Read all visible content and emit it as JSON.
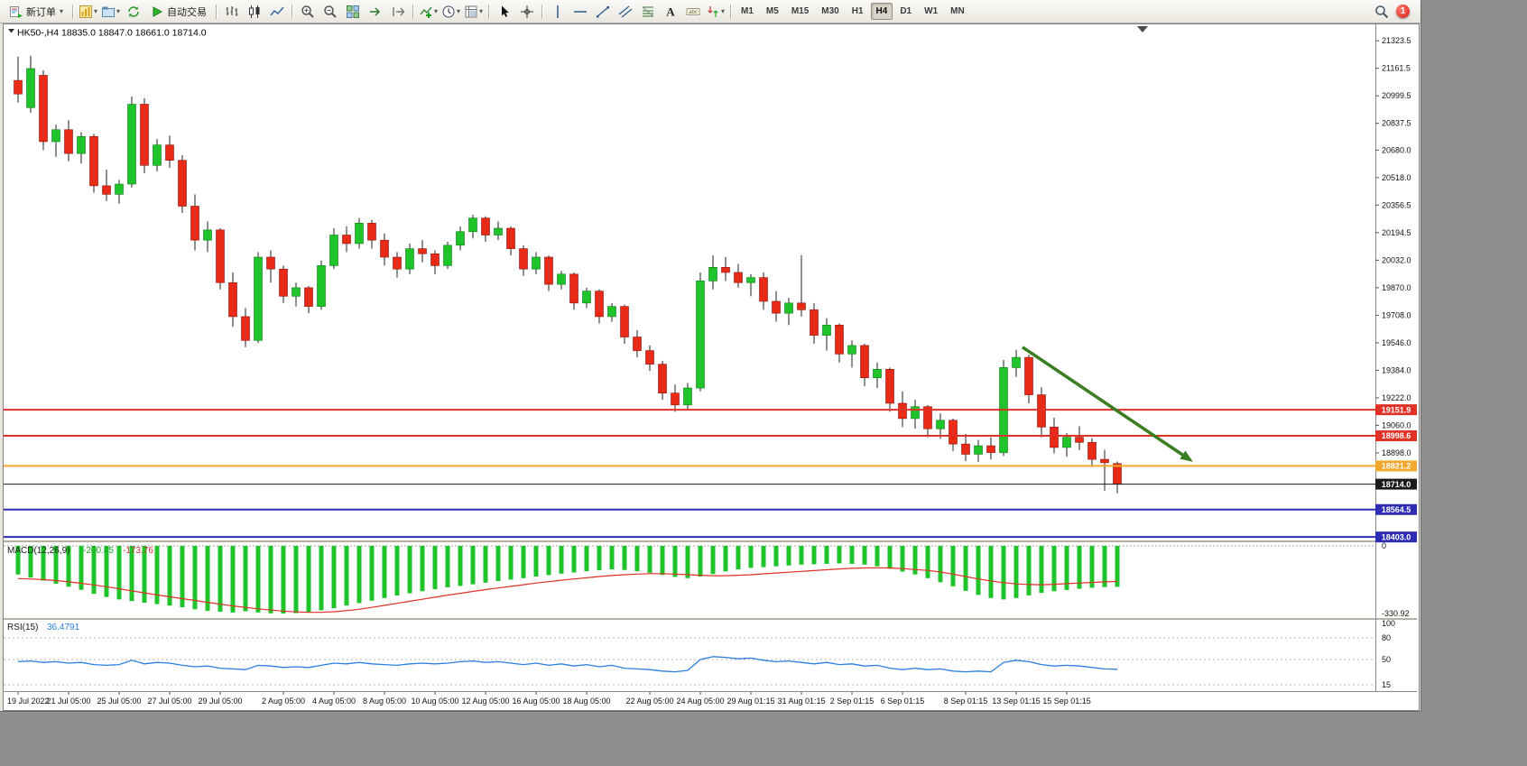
{
  "toolbar": {
    "new_order_label": "新订单",
    "auto_trading_label": "自动交易",
    "timeframes": {
      "items": [
        "M1",
        "M5",
        "M15",
        "M30",
        "H1",
        "H4",
        "D1",
        "W1",
        "MN"
      ],
      "active": "H4"
    },
    "notification": {
      "count": "1"
    },
    "icon_names": [
      "new-order",
      "new-chart",
      "profiles",
      "refresh",
      "auto-trading-play",
      "bar-chart",
      "candlestick-chart",
      "line-chart",
      "zoom-in",
      "zoom-out",
      "tile-windows",
      "auto-scroll",
      "chart-shift",
      "indicators",
      "periods-clock",
      "templates",
      "cursor",
      "crosshair",
      "vertical-line",
      "horizontal-line",
      "trendline",
      "equidistant-channel",
      "fibonacci-retracement",
      "text",
      "text-label",
      "arrows",
      "search"
    ]
  },
  "chart_data": {
    "type": "candlestick",
    "symbol": "HK50-",
    "timeframe": "H4",
    "title": "HK50-,H4 18835.0 18847.0 18661.0 18714.0",
    "current_bar": {
      "open": 18835.0,
      "high": 18847.0,
      "low": 18661.0,
      "close": 18714.0
    },
    "bull_color": "#1fc32a",
    "bear_color": "#e82a17",
    "candles": [
      [
        21090,
        21230,
        20960,
        21010
      ],
      [
        20930,
        21235,
        20900,
        21160
      ],
      [
        21120,
        21150,
        20680,
        20730
      ],
      [
        20730,
        20830,
        20640,
        20800
      ],
      [
        20800,
        20855,
        20615,
        20660
      ],
      [
        20660,
        20785,
        20600,
        20760
      ],
      [
        20760,
        20775,
        20430,
        20470
      ],
      [
        20470,
        20565,
        20380,
        20420
      ],
      [
        20420,
        20505,
        20365,
        20480
      ],
      [
        20480,
        20995,
        20460,
        20950
      ],
      [
        20950,
        20985,
        20545,
        20590
      ],
      [
        20590,
        20745,
        20555,
        20710
      ],
      [
        20710,
        20765,
        20575,
        20620
      ],
      [
        20620,
        20650,
        20310,
        20350
      ],
      [
        20350,
        20420,
        20090,
        20150
      ],
      [
        20150,
        20260,
        20080,
        20210
      ],
      [
        20210,
        20220,
        19860,
        19900
      ],
      [
        19900,
        19960,
        19640,
        19700
      ],
      [
        19700,
        19750,
        19520,
        19560
      ],
      [
        19560,
        20080,
        19545,
        20050
      ],
      [
        20050,
        20090,
        19900,
        19980
      ],
      [
        19980,
        20000,
        19780,
        19820
      ],
      [
        19820,
        19900,
        19760,
        19870
      ],
      [
        19870,
        19880,
        19720,
        19760
      ],
      [
        19760,
        20030,
        19740,
        20000
      ],
      [
        20000,
        20220,
        19980,
        20180
      ],
      [
        20180,
        20230,
        20080,
        20130
      ],
      [
        20130,
        20280,
        20100,
        20250
      ],
      [
        20250,
        20270,
        20100,
        20150
      ],
      [
        20150,
        20190,
        20000,
        20050
      ],
      [
        20050,
        20080,
        19930,
        19980
      ],
      [
        19980,
        20130,
        19950,
        20100
      ],
      [
        20100,
        20150,
        20020,
        20070
      ],
      [
        20070,
        20090,
        19950,
        20000
      ],
      [
        20000,
        20140,
        19980,
        20120
      ],
      [
        20120,
        20230,
        20090,
        20200
      ],
      [
        20200,
        20300,
        20160,
        20280
      ],
      [
        20280,
        20290,
        20140,
        20180
      ],
      [
        20180,
        20260,
        20150,
        20220
      ],
      [
        20220,
        20230,
        20060,
        20100
      ],
      [
        20100,
        20120,
        19940,
        19980
      ],
      [
        19980,
        20080,
        19950,
        20050
      ],
      [
        20050,
        20060,
        19850,
        19890
      ],
      [
        19890,
        19970,
        19860,
        19950
      ],
      [
        19950,
        19960,
        19740,
        19780
      ],
      [
        19780,
        19870,
        19750,
        19850
      ],
      [
        19850,
        19860,
        19660,
        19700
      ],
      [
        19700,
        19780,
        19670,
        19760
      ],
      [
        19760,
        19770,
        19540,
        19580
      ],
      [
        19580,
        19620,
        19460,
        19500
      ],
      [
        19500,
        19530,
        19380,
        19420
      ],
      [
        19420,
        19440,
        19210,
        19250
      ],
      [
        19250,
        19300,
        19140,
        19180
      ],
      [
        19180,
        19310,
        19150,
        19280
      ],
      [
        19280,
        19960,
        19260,
        19910
      ],
      [
        19910,
        20060,
        19860,
        19990
      ],
      [
        19990,
        20050,
        19910,
        19960
      ],
      [
        19960,
        20010,
        19870,
        19900
      ],
      [
        19900,
        19950,
        19820,
        19930
      ],
      [
        19930,
        19960,
        19740,
        19790
      ],
      [
        19790,
        19850,
        19670,
        19720
      ],
      [
        19720,
        19810,
        19650,
        19780
      ],
      [
        19780,
        20060,
        19700,
        19740
      ],
      [
        19740,
        19780,
        19540,
        19590
      ],
      [
        19590,
        19690,
        19500,
        19650
      ],
      [
        19650,
        19660,
        19430,
        19480
      ],
      [
        19480,
        19560,
        19400,
        19530
      ],
      [
        19530,
        19540,
        19290,
        19340
      ],
      [
        19340,
        19430,
        19280,
        19390
      ],
      [
        19390,
        19400,
        19140,
        19190
      ],
      [
        19190,
        19260,
        19050,
        19100
      ],
      [
        19100,
        19210,
        19040,
        19170
      ],
      [
        19170,
        19180,
        18990,
        19040
      ],
      [
        19040,
        19130,
        18980,
        19090
      ],
      [
        19090,
        19100,
        18910,
        18950
      ],
      [
        18950,
        19010,
        18850,
        18890
      ],
      [
        18890,
        18975,
        18845,
        18940
      ],
      [
        18940,
        18990,
        18860,
        18900
      ],
      [
        18900,
        19445,
        18880,
        19400
      ],
      [
        19400,
        19505,
        19345,
        19460
      ],
      [
        19460,
        19475,
        19190,
        19240
      ],
      [
        19240,
        19285,
        18990,
        19050
      ],
      [
        19050,
        19105,
        18895,
        18930
      ],
      [
        18930,
        19015,
        18875,
        18990
      ],
      [
        18990,
        19055,
        18915,
        18960
      ],
      [
        18960,
        18985,
        18815,
        18860
      ],
      [
        18860,
        18915,
        18675,
        18840
      ],
      [
        18835,
        18847,
        18661,
        18714
      ]
    ],
    "time_labels": [
      {
        "i": 0,
        "t": "19 Jul 2022"
      },
      {
        "i": 4,
        "t": "21 Jul 05:00"
      },
      {
        "i": 8,
        "t": "25 Jul 05:00"
      },
      {
        "i": 12,
        "t": "27 Jul 05:00"
      },
      {
        "i": 16,
        "t": "29 Jul 05:00"
      },
      {
        "i": 21,
        "t": "2 Aug 05:00"
      },
      {
        "i": 25,
        "t": "4 Aug 05:00"
      },
      {
        "i": 29,
        "t": "8 Aug 05:00"
      },
      {
        "i": 33,
        "t": "10 Aug 05:00"
      },
      {
        "i": 37,
        "t": "12 Aug 05:00"
      },
      {
        "i": 41,
        "t": "16 Aug 05:00"
      },
      {
        "i": 45,
        "t": "18 Aug 05:00"
      },
      {
        "i": 50,
        "t": "22 Aug 05:00"
      },
      {
        "i": 54,
        "t": "24 Aug 05:00"
      },
      {
        "i": 58,
        "t": "29 Aug 01:15"
      },
      {
        "i": 62,
        "t": "31 Aug 01:15"
      },
      {
        "i": 66,
        "t": "2 Sep 01:15"
      },
      {
        "i": 70,
        "t": "6 Sep 01:15"
      },
      {
        "i": 75,
        "t": "8 Sep 01:15"
      },
      {
        "i": 79,
        "t": "13 Sep 01:15"
      },
      {
        "i": 83,
        "t": "15 Sep 01:15"
      }
    ],
    "price_axis_ticks": [
      "21323.5",
      "21161.5",
      "20999.5",
      "20837.5",
      "20680.0",
      "20518.0",
      "20356.5",
      "20194.5",
      "20032.0",
      "19870.0",
      "19708.0",
      "19546.0",
      "19384.0",
      "19222.0",
      "19060.0",
      "18898.0"
    ],
    "horizontal_lines": [
      {
        "price": 19151.9,
        "label": "19151.9",
        "color": "#e03126",
        "width": 2
      },
      {
        "price": 18998.6,
        "label": "18998.6",
        "color": "#e03126",
        "width": 2
      },
      {
        "price": 18821.2,
        "label": "18821.2",
        "color": "#f2a72e",
        "width": 2
      },
      {
        "price": 18714.0,
        "label": "18714.0",
        "color": "#1a1a1a",
        "width": 1
      },
      {
        "price": 18564.5,
        "label": "18564.5",
        "color": "#2d2db4",
        "width": 2
      },
      {
        "price": 18403.0,
        "label": "18403.0",
        "color": "#2d2db4",
        "width": 2
      }
    ],
    "arrow_annotation": {
      "from_index": 79.5,
      "from_price": 19520,
      "to_index": 93,
      "to_price": 18845,
      "color": "#3b7d22"
    },
    "indicators": {
      "macd": {
        "name": "MACD(12,26,9)",
        "main_value": "-200.45",
        "signal_value": "-173.76",
        "axis_max": "0",
        "axis_min": "-330.92",
        "histogram_color": "#1fc32a",
        "signal_color": "#e03126",
        "histogram": [
          -140,
          -155,
          -170,
          -185,
          -200,
          -215,
          -235,
          -250,
          -262,
          -270,
          -278,
          -285,
          -292,
          -300,
          -310,
          -318,
          -322,
          -326,
          -320,
          -326,
          -330,
          -331,
          -329,
          -324,
          -315,
          -305,
          -292,
          -280,
          -268,
          -255,
          -243,
          -232,
          -222,
          -212,
          -203,
          -196,
          -188,
          -180,
          -172,
          -165,
          -158,
          -150,
          -143,
          -136,
          -130,
          -124,
          -119,
          -115,
          -118,
          -124,
          -132,
          -142,
          -152,
          -158,
          -150,
          -138,
          -125,
          -115,
          -108,
          -104,
          -100,
          -96,
          -92,
          -90,
          -88,
          -86,
          -88,
          -92,
          -100,
          -112,
          -126,
          -140,
          -158,
          -178,
          -198,
          -220,
          -240,
          -255,
          -262,
          -255,
          -242,
          -230,
          -222,
          -216,
          -210,
          -205,
          -202,
          -200.45
        ],
        "signal": [
          -160,
          -162,
          -165,
          -170,
          -176,
          -183,
          -191,
          -200,
          -210,
          -220,
          -230,
          -240,
          -249,
          -258,
          -267,
          -276,
          -285,
          -294,
          -301,
          -308,
          -314,
          -319,
          -323,
          -325,
          -325,
          -322,
          -317,
          -310,
          -301,
          -291,
          -281,
          -271,
          -261,
          -251,
          -241,
          -232,
          -223,
          -214,
          -206,
          -198,
          -190,
          -182,
          -175,
          -168,
          -162,
          -156,
          -150,
          -145,
          -141,
          -138,
          -136,
          -136,
          -138,
          -141,
          -144,
          -146,
          -146,
          -144,
          -141,
          -137,
          -133,
          -129,
          -125,
          -121,
          -117,
          -113,
          -110,
          -108,
          -107,
          -108,
          -111,
          -116,
          -120,
          -128,
          -138,
          -150,
          -162,
          -172,
          -180,
          -186,
          -189,
          -190,
          -188,
          -185,
          -182,
          -179,
          -176,
          -173.76
        ]
      },
      "rsi": {
        "name": "RSI(15)",
        "value": "36.4791",
        "axis_ticks": [
          "100",
          "80",
          "50",
          "15"
        ],
        "levels": [
          80,
          50,
          15
        ],
        "line_color": "#2a7fe0",
        "values": [
          47,
          48,
          46,
          47,
          45,
          46,
          43,
          42,
          43,
          49,
          44,
          46,
          45,
          42,
          40,
          41,
          38,
          37,
          36,
          42,
          41,
          39,
          40,
          39,
          42,
          45,
          44,
          46,
          44,
          43,
          42,
          44,
          45,
          44,
          45,
          47,
          48,
          46,
          47,
          45,
          43,
          45,
          42,
          44,
          41,
          43,
          40,
          42,
          38,
          37,
          36,
          34,
          33,
          35,
          50,
          54,
          53,
          51,
          52,
          49,
          47,
          48,
          46,
          44,
          46,
          43,
          44,
          41,
          42,
          38,
          36,
          38,
          36,
          37,
          34,
          33,
          34,
          33,
          46,
          49,
          47,
          43,
          41,
          42,
          41,
          39,
          37,
          36.4791
        ]
      }
    }
  }
}
